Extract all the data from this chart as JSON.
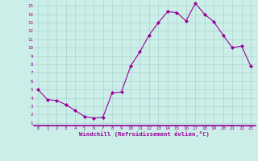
{
  "x": [
    0,
    1,
    2,
    3,
    4,
    5,
    6,
    7,
    8,
    9,
    10,
    11,
    12,
    13,
    14,
    15,
    16,
    17,
    18,
    19,
    20,
    21,
    22,
    23
  ],
  "y": [
    5.0,
    3.8,
    3.7,
    3.2,
    2.5,
    1.8,
    1.6,
    1.7,
    4.6,
    4.7,
    7.8,
    9.5,
    11.5,
    13.0,
    14.3,
    14.2,
    13.2,
    15.3,
    14.0,
    13.1,
    11.5,
    10.0,
    10.2,
    7.8
  ],
  "line_color": "#990099",
  "marker": "D",
  "marker_size": 2.0,
  "bg_color": "#cceee8",
  "grid_color": "#aad4ce",
  "xlabel": "Windchill (Refroidissement éolien,°C)",
  "xlabel_color": "#990099",
  "tick_color": "#990099",
  "spine_color": "#990099",
  "ylim": [
    1,
    15
  ],
  "xlim": [
    0,
    23
  ],
  "yticks": [
    1,
    2,
    3,
    4,
    5,
    6,
    7,
    8,
    9,
    10,
    11,
    12,
    13,
    14,
    15
  ],
  "xticks": [
    0,
    1,
    2,
    3,
    4,
    5,
    6,
    7,
    8,
    9,
    10,
    11,
    12,
    13,
    14,
    15,
    16,
    17,
    18,
    19,
    20,
    21,
    22,
    23
  ],
  "tick_fontsize": 4.2,
  "xlabel_fontsize": 5.2
}
